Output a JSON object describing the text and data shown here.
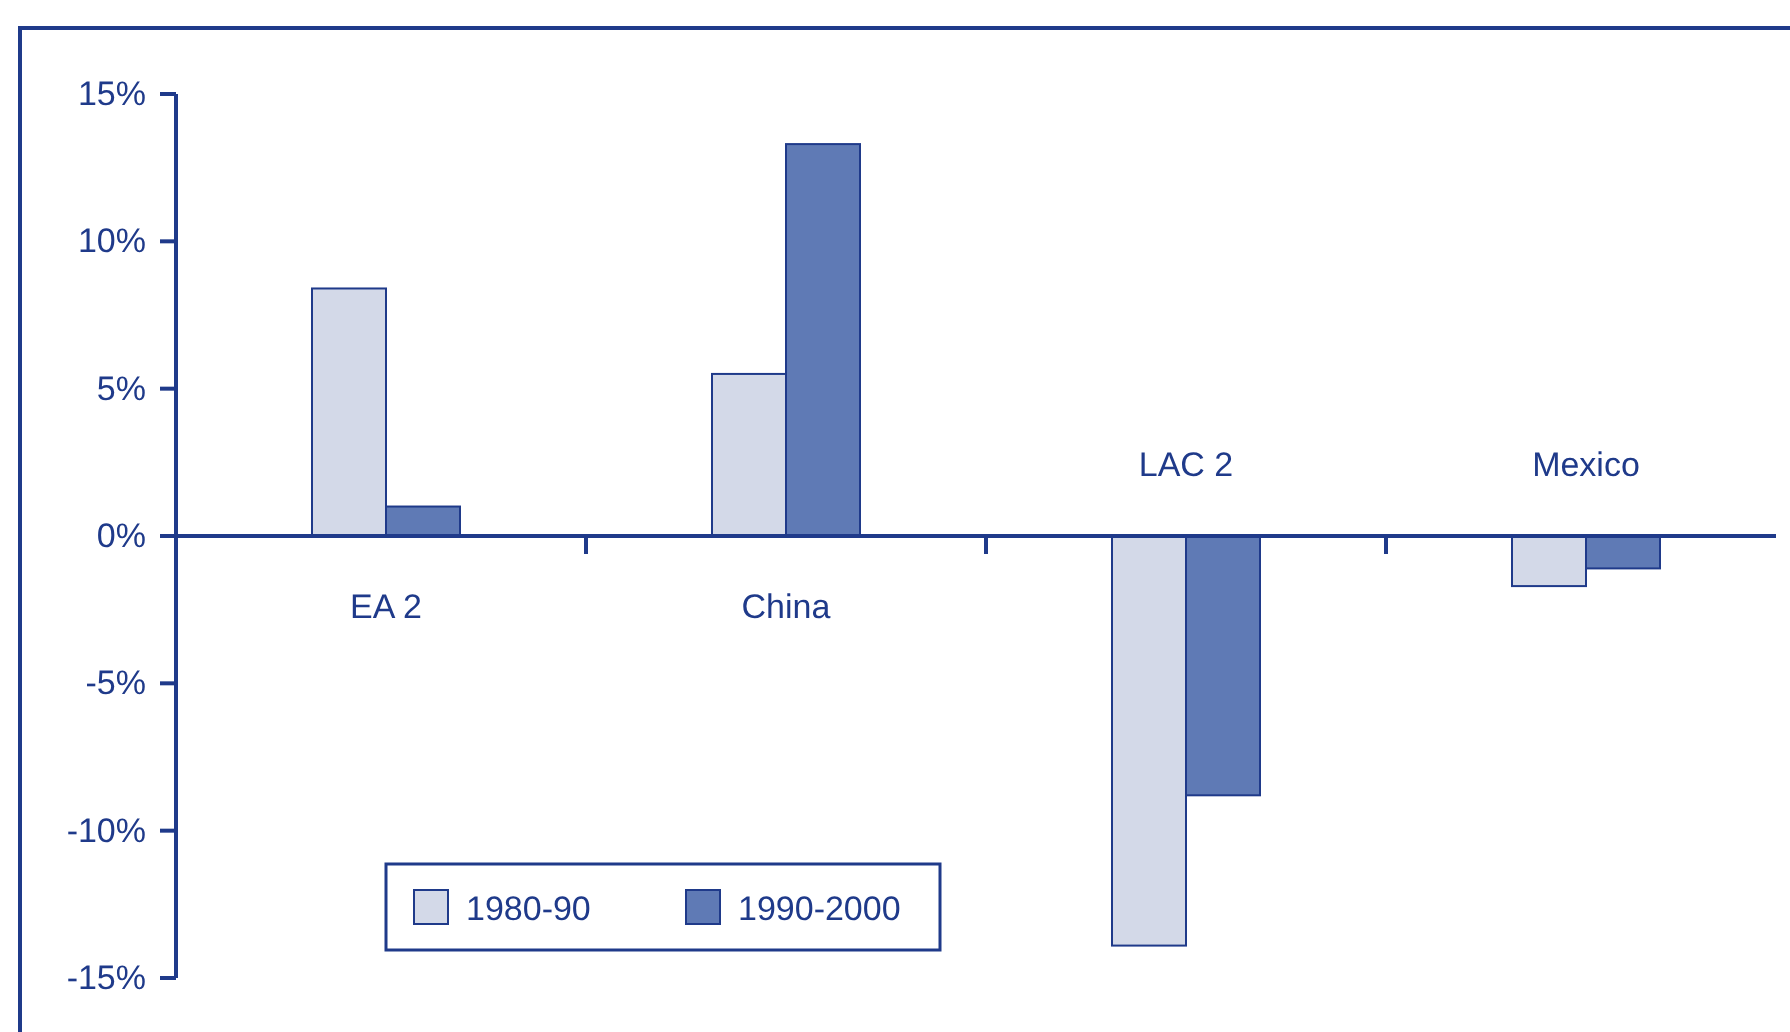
{
  "chart_data": {
    "type": "bar",
    "categories": [
      "EA 2",
      "China",
      "LAC 2",
      "Mexico"
    ],
    "series": [
      {
        "name": "1980-90",
        "color": "#d3d9e8",
        "values": [
          8.4,
          5.5,
          -13.9,
          -1.7
        ]
      },
      {
        "name": "1990-2000",
        "color": "#5f7ab5",
        "values": [
          1.0,
          13.3,
          -8.8,
          -1.1
        ]
      }
    ],
    "ylim": [
      -15,
      15
    ],
    "yticks": [
      {
        "value": -15,
        "label": "-15%"
      },
      {
        "value": -10,
        "label": "-10%"
      },
      {
        "value": -5,
        "label": "-5%"
      },
      {
        "value": 0,
        "label": "0%"
      },
      {
        "value": 5,
        "label": "5%"
      },
      {
        "value": 10,
        "label": "10%"
      },
      {
        "value": 15,
        "label": "15%"
      }
    ],
    "legend": "bottom left"
  }
}
